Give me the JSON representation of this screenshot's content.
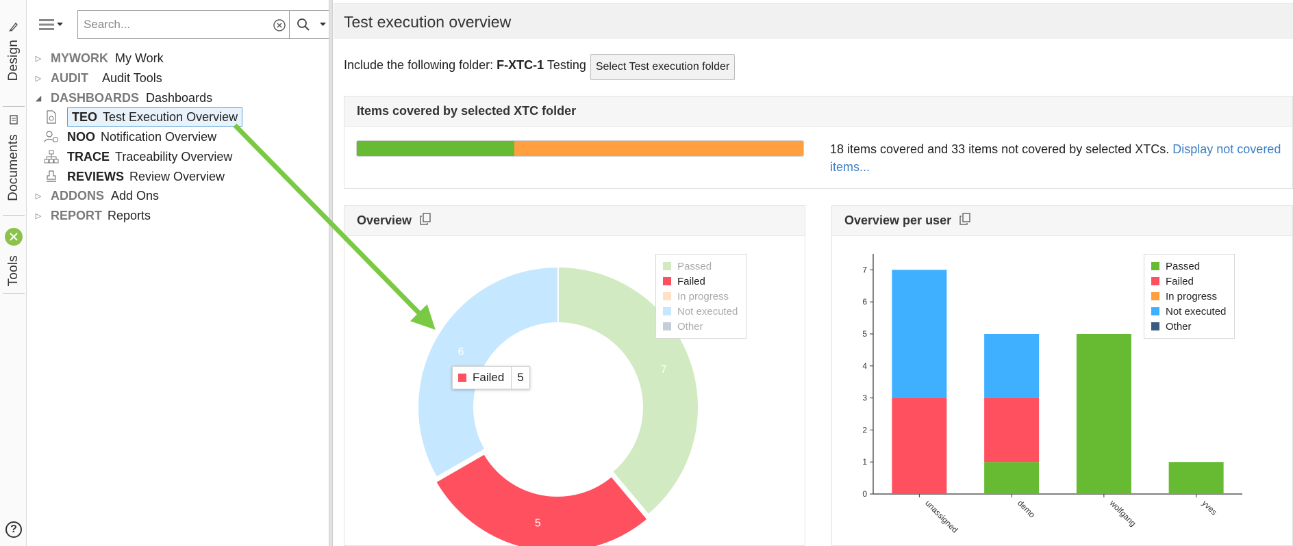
{
  "sidebar_tabs": {
    "design": "Design",
    "documents": "Documents",
    "tools": "Tools"
  },
  "search": {
    "placeholder": "Search..."
  },
  "tree": {
    "mywork": {
      "code": "MYWORK",
      "name": "My Work"
    },
    "audit": {
      "code": "AUDIT",
      "name": "Audit Tools"
    },
    "dashboards": {
      "code": "DASHBOARDS",
      "name": "Dashboards"
    },
    "teo": {
      "code": "TEO",
      "name": "Test Execution Overview"
    },
    "noo": {
      "code": "NOO",
      "name": "Notification Overview"
    },
    "trace": {
      "code": "TRACE",
      "name": "Traceability Overview"
    },
    "reviews": {
      "code": "REVIEWS",
      "name": "Review Overview"
    },
    "addons": {
      "code": "ADDONS",
      "name": "Add Ons"
    },
    "report": {
      "code": "REPORT",
      "name": "Reports"
    }
  },
  "main": {
    "title": "Test execution overview",
    "folder_prefix": "Include the following folder: ",
    "folder_code": "F-XTC-1",
    "folder_name": " Testing",
    "select_button": "Select Test execution folder"
  },
  "coverage": {
    "title": "Items covered by selected XTC folder",
    "covered": 18,
    "not_covered": 33,
    "text": "18 items covered and 33 items not covered by selected XTCs. ",
    "link": "Display not covered items..."
  },
  "overview_panel": {
    "title": "Overview"
  },
  "overview_user_panel": {
    "title": "Overview per user"
  },
  "legend_labels": [
    "Passed",
    "Failed",
    "In progress",
    "Not executed",
    "Other"
  ],
  "colors": {
    "passed": "#66bb33",
    "failed": "#ff5060",
    "in_progress": "#ff9f40",
    "not_executed": "#3fb0ff",
    "other": "#3a5a80",
    "link": "#3a7ec4"
  },
  "tooltip": {
    "label": "Failed",
    "value": "5"
  },
  "chart_data": [
    {
      "type": "pie",
      "title": "Overview",
      "categories": [
        "Passed",
        "Failed",
        "In progress",
        "Not executed",
        "Other"
      ],
      "values": [
        7,
        5,
        0,
        6,
        0
      ],
      "legend": "top-right"
    },
    {
      "type": "bar",
      "title": "Overview per user",
      "stacked": true,
      "categories": [
        "unassigned",
        "demo",
        "wolfgang",
        "yves"
      ],
      "series": [
        {
          "name": "Passed",
          "values": [
            0,
            1,
            5,
            1
          ]
        },
        {
          "name": "Failed",
          "values": [
            3,
            2,
            0,
            0
          ]
        },
        {
          "name": "In progress",
          "values": [
            0,
            0,
            0,
            0
          ]
        },
        {
          "name": "Not executed",
          "values": [
            4,
            2,
            0,
            0
          ]
        },
        {
          "name": "Other",
          "values": [
            0,
            0,
            0,
            0
          ]
        }
      ],
      "ylim": [
        0,
        7.5
      ],
      "yticks": [
        0,
        1,
        2,
        3,
        4,
        5,
        6,
        7
      ],
      "legend": "top-right"
    }
  ]
}
